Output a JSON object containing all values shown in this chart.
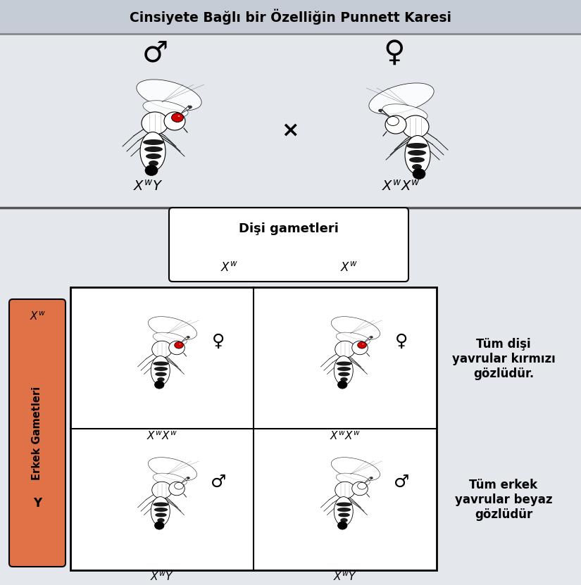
{
  "title": "Cinsiyete Bağlı bir Özelliğin Punnett Karesi",
  "title_bg": "#c5ccd6",
  "main_bg": "#e4e8ed",
  "erkek_box_color": "#e07248",
  "erkek_box_text": "Erkek Gametleri",
  "disi_box_text": "Dişi gametleri",
  "male_symbol": "♂",
  "female_symbol": "♀",
  "right_text_top": "Tüm dişi\nyavrular kırmızı\ngözlüdür.",
  "right_text_bottom": "Tüm erkek\nyavrular beyaz\ngözlüdür"
}
